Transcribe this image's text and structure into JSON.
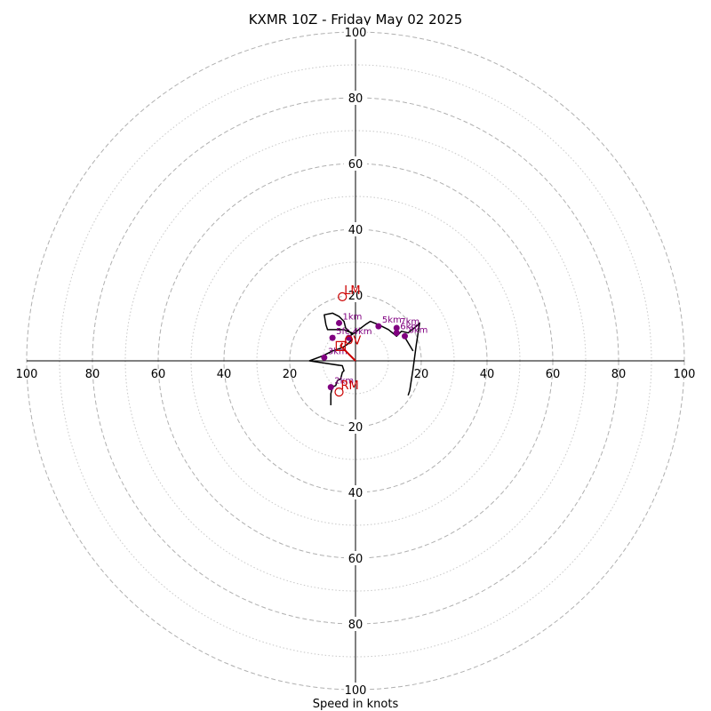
{
  "chart_data": {
    "type": "hodograph",
    "title": "KXMR 10Z - Friday May 02 2025",
    "xlabel": "Speed in knots",
    "units": "knots",
    "max_speed": 100,
    "ring_interval_major": 20,
    "ring_interval_minor": 10,
    "tick_labels": [
      "20",
      "40",
      "60",
      "80",
      "100"
    ],
    "hodograph_line": {
      "color": "#000000",
      "points": [
        [
          -7.5,
          -13.5
        ],
        [
          -7.5,
          -10
        ],
        [
          -7,
          -8
        ],
        [
          -6,
          -7.5
        ],
        [
          -5.5,
          -6
        ],
        [
          -4.5,
          -5.5
        ],
        [
          -4,
          -3.5
        ],
        [
          -3.5,
          -3
        ],
        [
          -4,
          -1.5
        ],
        [
          -14,
          0
        ],
        [
          -10,
          1.5
        ],
        [
          -7,
          3
        ],
        [
          -4,
          4
        ],
        [
          -2.5,
          5
        ],
        [
          -1,
          6.5
        ],
        [
          -1.5,
          7.5
        ],
        [
          -1,
          8.5
        ],
        [
          -2.5,
          9
        ],
        [
          -3.5,
          9.5
        ],
        [
          -6,
          9.5
        ],
        [
          -8.5,
          9.5
        ],
        [
          -9,
          11
        ],
        [
          -9.5,
          14
        ],
        [
          -7,
          14.5
        ],
        [
          -5,
          13.5
        ],
        [
          -3.5,
          12
        ],
        [
          -3,
          10
        ],
        [
          -1,
          8
        ],
        [
          3,
          11
        ],
        [
          4.5,
          12
        ],
        [
          7,
          11
        ],
        [
          10,
          9.5
        ],
        [
          12.5,
          7.5
        ],
        [
          14,
          9
        ],
        [
          16,
          8.5
        ],
        [
          18.5,
          10.5
        ],
        [
          19.5,
          11.5
        ],
        [
          18.5,
          5
        ],
        [
          17.5,
          -2.5
        ],
        [
          16.5,
          -9
        ],
        [
          16,
          -10.5
        ]
      ],
      "head_branch": [
        [
          14.5,
          8
        ],
        [
          17.5,
          3
        ]
      ]
    },
    "height_markers": {
      "color": "#800080",
      "points": [
        {
          "label": "1km",
          "u": -5,
          "v": 11.5
        },
        {
          "label": "2km",
          "u": -7.5,
          "v": -8
        },
        {
          "label": "3km",
          "u": -9.5,
          "v": 1
        },
        {
          "label": "4km",
          "u": -2,
          "v": 7
        },
        {
          "label": "5km",
          "u": 7,
          "v": 10.5
        },
        {
          "label": "6km",
          "u": 12.5,
          "v": 8.5
        },
        {
          "label": "7km",
          "u": 12.5,
          "v": 10
        },
        {
          "label": "8km",
          "u": 15,
          "v": 7.5
        },
        {
          "label": "5fc",
          "u": -7,
          "v": 7
        }
      ]
    },
    "storm_motion": {
      "color": "#cc0000",
      "LM": {
        "label": "LM",
        "u": -4,
        "v": 19.5
      },
      "RM": {
        "label": "RM",
        "u": -5,
        "v": -9.5
      },
      "MW": {
        "label": "MW",
        "u": -4.5,
        "v": 4.5
      },
      "MW_text": "OV",
      "shear_vector": [
        [
          0,
          0
        ],
        [
          -4.5,
          4.5
        ],
        [
          -4,
          5.5
        ]
      ]
    }
  }
}
